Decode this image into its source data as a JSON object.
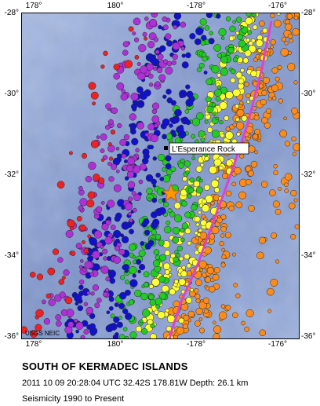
{
  "map": {
    "lon_ticks": [
      "178°",
      "180°",
      "-178°",
      "-176°"
    ],
    "lat_ticks": [
      "-28°",
      "-30°",
      "-32°",
      "-34°",
      "-36°"
    ],
    "place_label": "L'Esperance Rock",
    "credit": "USGS NEIC",
    "colors": {
      "ocean": "#7b92c8",
      "trench": "#e040d0",
      "depth_classes": [
        "#ff8c1a",
        "#ffff33",
        "#22cc22",
        "#1111cc",
        "#b030d8",
        "#ee2222"
      ]
    }
  },
  "caption": {
    "title": "SOUTH OF KERMADEC ISLANDS",
    "event": "2011 10 09 20:28:04 UTC 32.42S 178.81W Depth: 26.1 km",
    "seismicity": "Seismicity 1990 to Present"
  }
}
